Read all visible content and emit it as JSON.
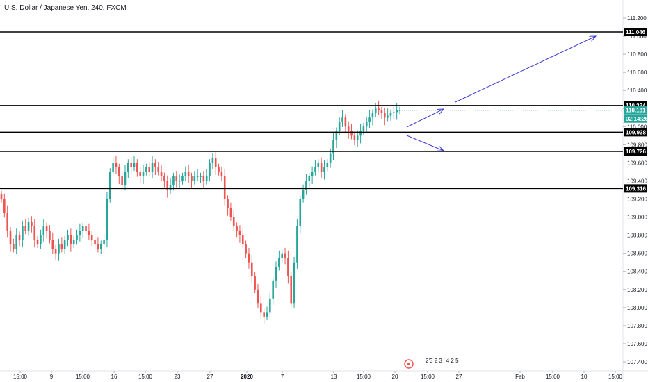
{
  "chart": {
    "title": "U.S. Dollar / Japanese Yen, 240, FXCM",
    "current_price": "110.181",
    "countdown": "02:14:26",
    "current_price_color": "#26a69a",
    "up_color": "#26a69a",
    "down_color": "#ef5350",
    "line_color": "#000000",
    "arrow_color": "#3b3bd6"
  },
  "chart_data": {
    "type": "candlestick",
    "symbol": "U.S. Dollar / Japanese Yen",
    "interval": "240",
    "source": "FXCM",
    "ylim": [
      107.35,
      111.35
    ],
    "grid": false,
    "y_ticks": [
      "111.200",
      "111.000",
      "110.800",
      "110.600",
      "110.400",
      "110.200",
      "110.000",
      "109.800",
      "109.600",
      "109.400",
      "109.200",
      "109.000",
      "108.800",
      "108.600",
      "108.400",
      "108.200",
      "108.000",
      "107.800",
      "107.600",
      "107.400"
    ],
    "x_ticks": [
      {
        "label": "15:00",
        "bold": false
      },
      {
        "label": "9",
        "bold": false
      },
      {
        "label": "15:00",
        "bold": false
      },
      {
        "label": "16",
        "bold": false
      },
      {
        "label": "15:00",
        "bold": false
      },
      {
        "label": "23",
        "bold": false
      },
      {
        "label": "27",
        "bold": false
      },
      {
        "label": "2020",
        "bold": true
      },
      {
        "label": "7",
        "bold": false
      },
      {
        "label": "13",
        "bold": false
      },
      {
        "label": "15:00",
        "bold": false
      },
      {
        "label": "20",
        "bold": false
      },
      {
        "label": "15:00",
        "bold": false
      },
      {
        "label": "27",
        "bold": false
      },
      {
        "label": "Feb",
        "bold": false
      },
      {
        "label": "15:00",
        "bold": false
      },
      {
        "label": "10",
        "bold": false
      },
      {
        "label": "15:00",
        "bold": false
      }
    ],
    "horizontal_levels": [
      {
        "label": "111.046",
        "value": 111.046
      },
      {
        "label": "110.234",
        "value": 110.234
      },
      {
        "label": "109.938",
        "value": 109.938
      },
      {
        "label": "109.726",
        "value": 109.726
      },
      {
        "label": "109.316",
        "value": 109.316
      }
    ],
    "closes": [
      109.2,
      109.05,
      108.85,
      108.7,
      108.65,
      108.8,
      108.75,
      108.9,
      108.85,
      108.95,
      108.9,
      108.75,
      108.7,
      108.8,
      108.9,
      108.85,
      108.75,
      108.65,
      108.6,
      108.7,
      108.65,
      108.75,
      108.8,
      108.7,
      108.75,
      108.8,
      108.85,
      108.9,
      108.85,
      108.8,
      108.75,
      108.7,
      108.65,
      108.7,
      108.75,
      109.2,
      109.5,
      109.6,
      109.55,
      109.45,
      109.35,
      109.5,
      109.6,
      109.55,
      109.6,
      109.5,
      109.45,
      109.5,
      109.55,
      109.5,
      109.6,
      109.55,
      109.5,
      109.45,
      109.4,
      109.3,
      109.35,
      109.45,
      109.4,
      109.4,
      109.45,
      109.5,
      109.45,
      109.4,
      109.45,
      109.45,
      109.45,
      109.4,
      109.45,
      109.6,
      109.65,
      109.55,
      109.5,
      109.45,
      109.2,
      109.1,
      109.0,
      108.9,
      108.85,
      108.8,
      108.7,
      108.6,
      108.5,
      108.35,
      108.2,
      108.05,
      107.95,
      107.9,
      107.95,
      108.1,
      108.3,
      108.45,
      108.55,
      108.6,
      108.55,
      108.35,
      108.05,
      108.5,
      108.9,
      109.2,
      109.3,
      109.4,
      109.45,
      109.5,
      109.55,
      109.6,
      109.5,
      109.55,
      109.6,
      109.7,
      109.85,
      109.95,
      110.05,
      110.1,
      110.0,
      109.95,
      109.9,
      109.85,
      109.9,
      109.95,
      110.0,
      110.05,
      110.1,
      110.15,
      110.2,
      110.18,
      110.15,
      110.1,
      110.12,
      110.15,
      110.16,
      110.18,
      110.181
    ]
  },
  "watermark": {
    "text": "2'3 2 3 ' 4 2 5"
  }
}
